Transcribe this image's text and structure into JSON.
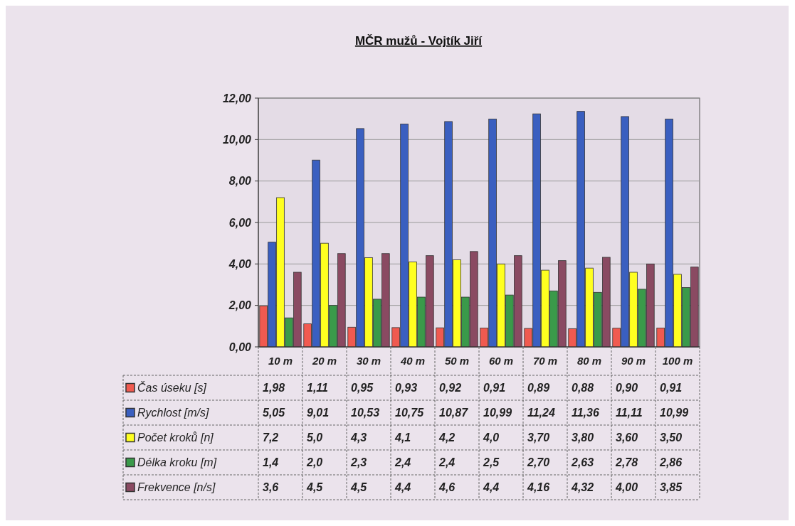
{
  "chart_data": {
    "type": "bar",
    "title": "MČR mužů - Vojtík Jiří",
    "categories": [
      "10 m",
      "20 m",
      "30 m",
      "40 m",
      "50 m",
      "60 m",
      "70 m",
      "80 m",
      "90 m",
      "100 m"
    ],
    "series": [
      {
        "name": "Čas úseku [s]",
        "color": "#f05a50",
        "values": [
          1.98,
          1.11,
          0.95,
          0.93,
          0.92,
          0.91,
          0.89,
          0.88,
          0.9,
          0.91
        ],
        "value_labels": [
          "1,98",
          "1,11",
          "0,95",
          "0,93",
          "0,92",
          "0,91",
          "0,89",
          "0,88",
          "0,90",
          "0,91"
        ]
      },
      {
        "name": "Rychlost [m/s]",
        "color": "#3a5fc0",
        "values": [
          5.05,
          9.01,
          10.53,
          10.75,
          10.87,
          10.99,
          11.24,
          11.36,
          11.11,
          10.99
        ],
        "value_labels": [
          "5,05",
          "9,01",
          "10,53",
          "10,75",
          "10,87",
          "10,99",
          "11,24",
          "11,36",
          "11,11",
          "10,99"
        ]
      },
      {
        "name": "Počet kroků [n]",
        "color": "#ffff20",
        "values": [
          7.2,
          5.0,
          4.3,
          4.1,
          4.2,
          4.0,
          3.7,
          3.8,
          3.6,
          3.5
        ],
        "value_labels": [
          "7,2",
          "5,0",
          "4,3",
          "4,1",
          "4,2",
          "4,0",
          "3,70",
          "3,80",
          "3,60",
          "3,50"
        ]
      },
      {
        "name": "Délka kroku [m]",
        "color": "#3a9a4a",
        "values": [
          1.4,
          2.0,
          2.3,
          2.4,
          2.4,
          2.5,
          2.7,
          2.63,
          2.78,
          2.86
        ],
        "value_labels": [
          "1,4",
          "2,0",
          "2,3",
          "2,4",
          "2,4",
          "2,5",
          "2,70",
          "2,63",
          "2,78",
          "2,86"
        ]
      },
      {
        "name": "Frekvence [n/s]",
        "color": "#8a4a62",
        "values": [
          3.6,
          4.5,
          4.5,
          4.4,
          4.6,
          4.4,
          4.16,
          4.32,
          4.0,
          3.85
        ],
        "value_labels": [
          "3,6",
          "4,5",
          "4,5",
          "4,4",
          "4,6",
          "4,4",
          "4,16",
          "4,32",
          "4,00",
          "3,85"
        ]
      }
    ],
    "ylim": [
      0,
      12
    ],
    "yticks": [
      {
        "value": 0,
        "label": "0,00"
      },
      {
        "value": 2,
        "label": "2,00"
      },
      {
        "value": 4,
        "label": "4,00"
      },
      {
        "value": 6,
        "label": "6,00"
      },
      {
        "value": 8,
        "label": "8,00"
      },
      {
        "value": 10,
        "label": "10,00"
      },
      {
        "value": 12,
        "label": "12,00"
      }
    ],
    "grid": "y",
    "legend": "bottom"
  }
}
